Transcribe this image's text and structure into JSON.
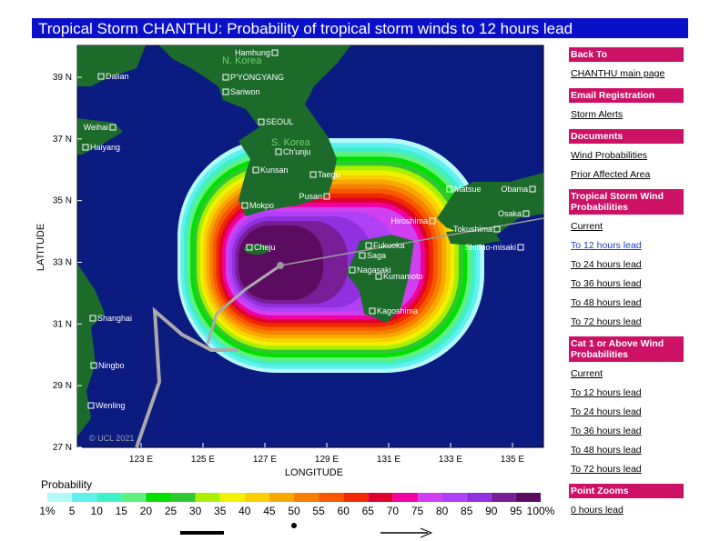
{
  "header": {
    "title": "Tropical Storm CHANTHU: Probability of tropical storm winds to 12 hours lead"
  },
  "map": {
    "lat_ticks": [
      "39 N",
      "37 N",
      "35 N",
      "33 N",
      "31 N",
      "29 N",
      "27 N"
    ],
    "lon_ticks": [
      "123 E",
      "125 E",
      "127 E",
      "129 E",
      "131 E",
      "133 E",
      "135 E"
    ],
    "x_label": "LONGITUDE",
    "y_label": "LATITUDE",
    "copyright": "© UCL 2021",
    "regions": [
      "N. Korea",
      "S. Korea"
    ],
    "places": [
      "Dalian",
      "Hamhung",
      "P'YONGYANG",
      "Sariwon",
      "SEOUL",
      "Ch'unju",
      "Weihai",
      "Haiyang",
      "Kunsan",
      "Taegu",
      "Pusan",
      "Mokpo",
      "Cheju",
      "Matsue",
      "Obama",
      "Osaka",
      "Hiroshima",
      "Tokushima",
      "Shiono-misaki",
      "Fukuoka",
      "Saga",
      "Nagasaki",
      "Kumamoto",
      "Kagoshima",
      "Shanghai",
      "Ningbo",
      "Wenling"
    ]
  },
  "legend": {
    "title": "Probability",
    "labels": [
      "1%",
      "5",
      "10",
      "15",
      "20",
      "25",
      "30",
      "35",
      "40",
      "45",
      "50",
      "55",
      "60",
      "65",
      "70",
      "75",
      "80",
      "85",
      "90",
      "95",
      "100%"
    ]
  },
  "sidebar": [
    {
      "heading": "Back To",
      "links": [
        "CHANTHU main page"
      ]
    },
    {
      "heading": "Email Registration",
      "links": [
        "Storm Alerts"
      ]
    },
    {
      "heading": "Documents",
      "links": [
        "Wind Probabilities",
        "Prior Affected Area"
      ]
    },
    {
      "heading": "Tropical Storm Wind Probabilities",
      "links": [
        "Current",
        "To 12 hours lead",
        "To 24 hours lead",
        "To 36 hours lead",
        "To 48 hours lead",
        "To 72 hours lead"
      ]
    },
    {
      "heading": "Cat 1 or Above Wind Probabilities",
      "links": [
        "Current",
        "To 12 hours lead",
        "To 24 hours lead",
        "To 36 hours lead",
        "To 48 hours lead",
        "To 72 hours lead"
      ]
    },
    {
      "heading": "Point Zooms",
      "links": [
        "0 hours lead"
      ]
    }
  ]
}
